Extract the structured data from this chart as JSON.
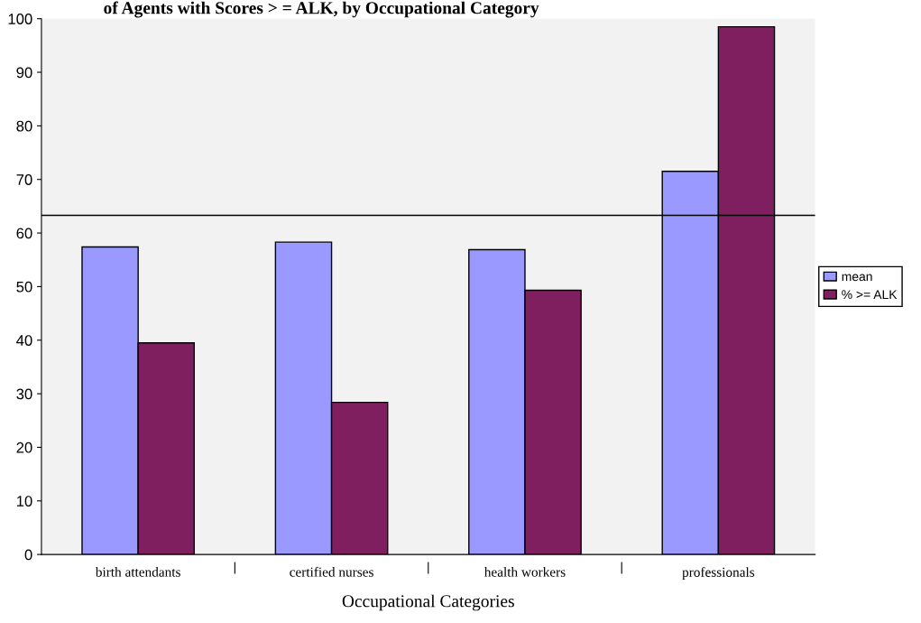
{
  "chart_data": {
    "type": "bar",
    "title": "of Agents with Scores > = ALK, by Occupational Category",
    "xlabel": "Occupational Categories",
    "categories": [
      "birth attendants",
      "certified nurses",
      "health workers",
      "professionals"
    ],
    "series": [
      {
        "name": "mean",
        "color": "#9999ff",
        "values": [
          57.4,
          58.3,
          56.9,
          71.5
        ]
      },
      {
        "name": "% >= ALK",
        "color": "#7f1f5f",
        "values": [
          39.5,
          28.4,
          49.3,
          98.5
        ]
      }
    ],
    "ylim": [
      0,
      100
    ],
    "yticks": [
      0,
      10,
      20,
      30,
      40,
      50,
      60,
      70,
      80,
      90,
      100
    ],
    "ref_lines": [
      {
        "axis": "y",
        "value": 63.3,
        "color": "#000000"
      }
    ],
    "grid": false,
    "legend": "right"
  }
}
